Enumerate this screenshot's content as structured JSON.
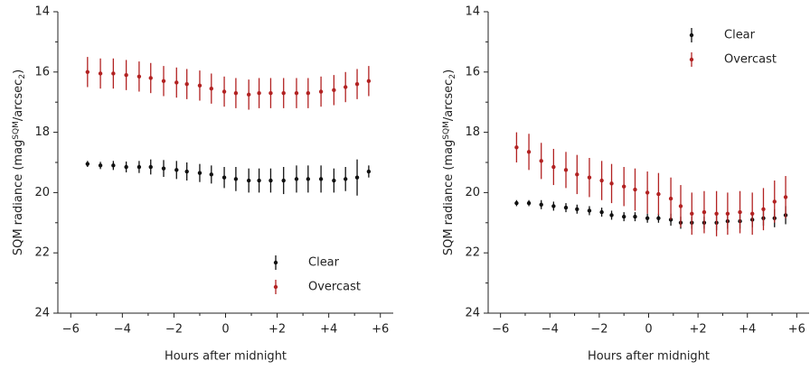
{
  "chart_data": [
    {
      "type": "errorbar",
      "xlabel": "Hours after midnight",
      "ylabel": [
        "SQM radiance (mag",
        "SQM",
        "/arcsec",
        "2",
        ")"
      ],
      "xlim": [
        -6.5,
        6.5
      ],
      "ylim": [
        24,
        14
      ],
      "yinverted": true,
      "xticks": [
        {
          "value": -6,
          "label": "−6"
        },
        {
          "value": -4,
          "label": "−4"
        },
        {
          "value": -2,
          "label": "−2"
        },
        0,
        {
          "value": 2,
          "label": "+2"
        },
        {
          "value": 4,
          "label": "+4"
        },
        {
          "value": 6,
          "label": "+6"
        }
      ],
      "yticks": [
        14,
        16,
        18,
        20,
        22,
        24
      ],
      "legend": "lower right",
      "x": [
        -5.35,
        -4.85,
        -4.35,
        -3.85,
        -3.35,
        -2.9,
        -2.4,
        -1.9,
        -1.5,
        -1.0,
        -0.55,
        -0.05,
        0.4,
        0.9,
        1.3,
        1.75,
        2.25,
        2.75,
        3.2,
        3.7,
        4.2,
        4.65,
        5.1,
        5.55
      ],
      "series": [
        {
          "name": "Clear",
          "color": "#111111",
          "values": [
            19.05,
            19.1,
            19.1,
            19.15,
            19.15,
            19.15,
            19.2,
            19.25,
            19.3,
            19.35,
            19.4,
            19.5,
            19.55,
            19.6,
            19.6,
            19.6,
            19.6,
            19.55,
            19.55,
            19.55,
            19.6,
            19.55,
            19.5,
            19.3
          ],
          "errors": [
            0.1,
            0.12,
            0.15,
            0.18,
            0.2,
            0.25,
            0.28,
            0.3,
            0.3,
            0.3,
            0.3,
            0.35,
            0.4,
            0.4,
            0.4,
            0.4,
            0.45,
            0.45,
            0.45,
            0.45,
            0.4,
            0.4,
            0.6,
            0.2
          ]
        },
        {
          "name": "Overcast",
          "color": "#b22222",
          "values": [
            16.0,
            16.05,
            16.05,
            16.1,
            16.15,
            16.2,
            16.3,
            16.35,
            16.4,
            16.45,
            16.55,
            16.65,
            16.7,
            16.75,
            16.7,
            16.7,
            16.7,
            16.7,
            16.7,
            16.65,
            16.6,
            16.5,
            16.4,
            16.3
          ],
          "errors": [
            0.5,
            0.5,
            0.5,
            0.5,
            0.5,
            0.5,
            0.5,
            0.5,
            0.5,
            0.5,
            0.5,
            0.5,
            0.5,
            0.5,
            0.5,
            0.5,
            0.5,
            0.5,
            0.5,
            0.5,
            0.5,
            0.5,
            0.5,
            0.5
          ]
        }
      ]
    },
    {
      "type": "errorbar",
      "xlabel": "Hours after midnight",
      "ylabel": [
        "SQM radiance (mag",
        "SQM",
        "/arcsec",
        "2",
        ")"
      ],
      "xlim": [
        -6.5,
        6.5
      ],
      "ylim": [
        24,
        14
      ],
      "yinverted": true,
      "xticks": [
        {
          "value": -6,
          "label": "−6"
        },
        {
          "value": -4,
          "label": "−4"
        },
        {
          "value": -2,
          "label": "−2"
        },
        0,
        {
          "value": 2,
          "label": "+2"
        },
        {
          "value": 4,
          "label": "+4"
        },
        {
          "value": 6,
          "label": "+6"
        }
      ],
      "yticks": [
        14,
        16,
        18,
        20,
        22,
        24
      ],
      "legend": "upper right",
      "x": [
        -5.35,
        -4.85,
        -4.35,
        -3.85,
        -3.35,
        -2.9,
        -2.4,
        -1.9,
        -1.5,
        -1.0,
        -0.55,
        -0.05,
        0.4,
        0.9,
        1.3,
        1.75,
        2.25,
        2.75,
        3.2,
        3.7,
        4.2,
        4.65,
        5.1,
        5.55
      ],
      "series": [
        {
          "name": "Clear",
          "color": "#111111",
          "values": [
            20.35,
            20.35,
            20.4,
            20.45,
            20.5,
            20.55,
            20.6,
            20.65,
            20.75,
            20.8,
            20.8,
            20.85,
            20.85,
            20.9,
            21.0,
            21.0,
            21.0,
            21.0,
            20.95,
            20.95,
            20.9,
            20.85,
            20.85,
            20.75
          ],
          "errors": [
            0.1,
            0.1,
            0.15,
            0.15,
            0.15,
            0.15,
            0.15,
            0.15,
            0.15,
            0.15,
            0.15,
            0.15,
            0.15,
            0.2,
            0.2,
            0.2,
            0.2,
            0.25,
            0.25,
            0.25,
            0.25,
            0.25,
            0.3,
            0.3
          ]
        },
        {
          "name": "Overcast",
          "color": "#b22222",
          "values": [
            18.5,
            18.65,
            18.95,
            19.15,
            19.25,
            19.4,
            19.5,
            19.6,
            19.7,
            19.8,
            19.9,
            20.0,
            20.05,
            20.2,
            20.45,
            20.7,
            20.65,
            20.7,
            20.7,
            20.65,
            20.7,
            20.55,
            20.3,
            20.15
          ],
          "errors": [
            0.5,
            0.6,
            0.6,
            0.6,
            0.6,
            0.65,
            0.65,
            0.65,
            0.65,
            0.65,
            0.7,
            0.7,
            0.7,
            0.7,
            0.7,
            0.7,
            0.7,
            0.75,
            0.7,
            0.7,
            0.7,
            0.7,
            0.7,
            0.7
          ]
        }
      ]
    }
  ]
}
